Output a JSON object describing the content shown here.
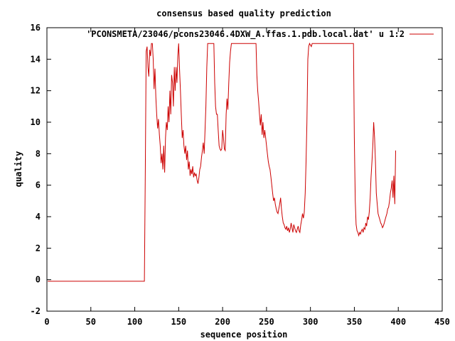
{
  "chart_data": {
    "type": "line",
    "title": "consensus based quality prediction",
    "xlabel": "sequence position",
    "ylabel": "quality",
    "xlim": [
      0,
      450
    ],
    "ylim": [
      -2,
      16
    ],
    "xticks": [
      0,
      50,
      100,
      150,
      200,
      250,
      300,
      350,
      400,
      450
    ],
    "yticks": [
      -2,
      0,
      2,
      4,
      6,
      8,
      10,
      12,
      14,
      16
    ],
    "legend_position": "top-right",
    "grid": false,
    "series": [
      {
        "name": "'PCONSMETA/23046/pcons23046.4DXW_A.ffas.1.pdb.local.dat' u 1:2",
        "color": "#cc0000",
        "points": [
          [
            1,
            -0.1
          ],
          [
            111,
            -0.1
          ],
          [
            112,
            7.0
          ],
          [
            113,
            14.5
          ],
          [
            114,
            14.8
          ],
          [
            115,
            13.5
          ],
          [
            116,
            12.9
          ],
          [
            117,
            14.6
          ],
          [
            118,
            14.2
          ],
          [
            119,
            15.0
          ],
          [
            120,
            15.0
          ],
          [
            121,
            14.0
          ],
          [
            122,
            12.1
          ],
          [
            123,
            13.4
          ],
          [
            124,
            11.6
          ],
          [
            125,
            10.5
          ],
          [
            126,
            9.6
          ],
          [
            127,
            10.2
          ],
          [
            128,
            9.2
          ],
          [
            129,
            8.5
          ],
          [
            130,
            7.4
          ],
          [
            131,
            8.0
          ],
          [
            132,
            7.0
          ],
          [
            133,
            8.5
          ],
          [
            134,
            6.8
          ],
          [
            135,
            9.0
          ],
          [
            136,
            10.0
          ],
          [
            137,
            9.5
          ],
          [
            138,
            11.0
          ],
          [
            139,
            10.0
          ],
          [
            140,
            12.0
          ],
          [
            141,
            10.5
          ],
          [
            142,
            13.0
          ],
          [
            143,
            12.5
          ],
          [
            144,
            11.0
          ],
          [
            145,
            13.5
          ],
          [
            146,
            12.0
          ],
          [
            147,
            13.5
          ],
          [
            148,
            12.5
          ],
          [
            149,
            14.2
          ],
          [
            150,
            15.0
          ],
          [
            151,
            13.3
          ],
          [
            152,
            12.0
          ],
          [
            153,
            10.5
          ],
          [
            154,
            9.0
          ],
          [
            155,
            9.5
          ],
          [
            156,
            8.5
          ],
          [
            157,
            8.0
          ],
          [
            158,
            8.5
          ],
          [
            159,
            7.6
          ],
          [
            160,
            8.2
          ],
          [
            161,
            7.0
          ],
          [
            162,
            7.5
          ],
          [
            163,
            6.6
          ],
          [
            164,
            7.0
          ],
          [
            165,
            6.7
          ],
          [
            166,
            7.2
          ],
          [
            167,
            6.5
          ],
          [
            168,
            6.8
          ],
          [
            169,
            6.6
          ],
          [
            170,
            6.7
          ],
          [
            171,
            6.3
          ],
          [
            172,
            6.1
          ],
          [
            173,
            6.5
          ],
          [
            174,
            7.0
          ],
          [
            175,
            7.2
          ],
          [
            176,
            7.8
          ],
          [
            177,
            8.2
          ],
          [
            178,
            8.7
          ],
          [
            179,
            8.0
          ],
          [
            180,
            9.5
          ],
          [
            181,
            11.0
          ],
          [
            182,
            13.5
          ],
          [
            183,
            15.0
          ],
          [
            190,
            15.0
          ],
          [
            191,
            12.5
          ],
          [
            192,
            11.0
          ],
          [
            193,
            10.5
          ],
          [
            194,
            10.5
          ],
          [
            195,
            9.5
          ],
          [
            196,
            8.5
          ],
          [
            197,
            8.3
          ],
          [
            198,
            8.2
          ],
          [
            199,
            8.3
          ],
          [
            200,
            9.5
          ],
          [
            201,
            9.0
          ],
          [
            202,
            8.3
          ],
          [
            203,
            8.2
          ],
          [
            204,
            10.5
          ],
          [
            205,
            11.5
          ],
          [
            206,
            10.8
          ],
          [
            207,
            12.5
          ],
          [
            208,
            13.8
          ],
          [
            209,
            14.5
          ],
          [
            210,
            15.0
          ],
          [
            238,
            15.0
          ],
          [
            239,
            13.0
          ],
          [
            240,
            12.0
          ],
          [
            241,
            11.3
          ],
          [
            242,
            10.5
          ],
          [
            243,
            9.8
          ],
          [
            244,
            10.5
          ],
          [
            245,
            9.2
          ],
          [
            246,
            10.0
          ],
          [
            247,
            9.0
          ],
          [
            248,
            9.5
          ],
          [
            249,
            9.0
          ],
          [
            250,
            8.5
          ],
          [
            251,
            8.0
          ],
          [
            252,
            7.5
          ],
          [
            253,
            7.2
          ],
          [
            254,
            7.0
          ],
          [
            255,
            6.5
          ],
          [
            256,
            6.0
          ],
          [
            257,
            5.5
          ],
          [
            258,
            5.0
          ],
          [
            259,
            5.2
          ],
          [
            260,
            4.8
          ],
          [
            261,
            4.5
          ],
          [
            262,
            4.3
          ],
          [
            263,
            4.2
          ],
          [
            264,
            4.5
          ],
          [
            265,
            4.8
          ],
          [
            266,
            5.2
          ],
          [
            267,
            4.5
          ],
          [
            268,
            4.0
          ],
          [
            269,
            3.6
          ],
          [
            270,
            3.5
          ],
          [
            271,
            3.3
          ],
          [
            272,
            3.2
          ],
          [
            273,
            3.4
          ],
          [
            274,
            3.1
          ],
          [
            275,
            3.3
          ],
          [
            276,
            3.0
          ],
          [
            277,
            3.2
          ],
          [
            278,
            3.6
          ],
          [
            279,
            3.3
          ],
          [
            280,
            3.0
          ],
          [
            281,
            3.5
          ],
          [
            282,
            3.3
          ],
          [
            283,
            3.1
          ],
          [
            284,
            3.0
          ],
          [
            285,
            3.2
          ],
          [
            286,
            3.4
          ],
          [
            287,
            3.1
          ],
          [
            288,
            3.0
          ],
          [
            289,
            3.5
          ],
          [
            290,
            3.8
          ],
          [
            291,
            4.2
          ],
          [
            292,
            3.9
          ],
          [
            293,
            4.3
          ],
          [
            294,
            5.5
          ],
          [
            295,
            7.5
          ],
          [
            296,
            10.0
          ],
          [
            297,
            14.0
          ],
          [
            298,
            14.8
          ],
          [
            299,
            15.0
          ],
          [
            301,
            14.8
          ],
          [
            302,
            15.0
          ],
          [
            349,
            15.0
          ],
          [
            350,
            9.0
          ],
          [
            351,
            5.0
          ],
          [
            352,
            3.5
          ],
          [
            353,
            3.1
          ],
          [
            354,
            3.0
          ],
          [
            355,
            2.8
          ],
          [
            356,
            3.0
          ],
          [
            357,
            2.9
          ],
          [
            358,
            3.1
          ],
          [
            359,
            3.2
          ],
          [
            360,
            3.0
          ],
          [
            361,
            3.3
          ],
          [
            362,
            3.2
          ],
          [
            363,
            3.6
          ],
          [
            364,
            3.4
          ],
          [
            365,
            4.0
          ],
          [
            366,
            3.8
          ],
          [
            367,
            4.3
          ],
          [
            368,
            5.2
          ],
          [
            369,
            6.5
          ],
          [
            370,
            7.5
          ],
          [
            371,
            8.5
          ],
          [
            372,
            10.0
          ],
          [
            373,
            9.0
          ],
          [
            374,
            7.5
          ],
          [
            375,
            5.5
          ],
          [
            376,
            4.8
          ],
          [
            377,
            4.2
          ],
          [
            378,
            4.0
          ],
          [
            379,
            3.8
          ],
          [
            380,
            3.6
          ],
          [
            381,
            3.5
          ],
          [
            382,
            3.3
          ],
          [
            383,
            3.4
          ],
          [
            384,
            3.6
          ],
          [
            385,
            3.8
          ],
          [
            386,
            4.0
          ],
          [
            387,
            4.2
          ],
          [
            388,
            4.5
          ],
          [
            389,
            4.6
          ],
          [
            390,
            5.0
          ],
          [
            391,
            5.5
          ],
          [
            392,
            5.8
          ],
          [
            393,
            6.3
          ],
          [
            394,
            5.2
          ],
          [
            395,
            6.6
          ],
          [
            396,
            4.8
          ],
          [
            397,
            8.2
          ]
        ]
      }
    ]
  }
}
